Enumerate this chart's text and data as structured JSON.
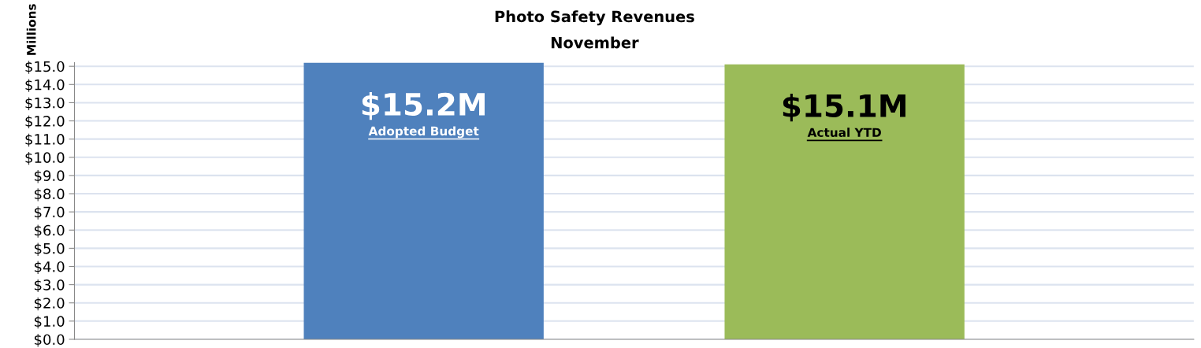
{
  "chart_data": {
    "type": "bar",
    "title": "Photo Safety Revenues",
    "subtitle": "November",
    "ylabel": "Millions",
    "categories": [
      "Adopted Budget",
      "Actual YTD"
    ],
    "values": [
      15.2,
      15.1
    ],
    "colors": [
      "#4f81bd",
      "#9bbb59"
    ],
    "value_labels": [
      "$15.2M",
      "$15.1M"
    ],
    "ylim": [
      0,
      15.2
    ],
    "yticks": [
      {
        "value": 0,
        "label": "$0.0"
      },
      {
        "value": 1,
        "label": "$1.0"
      },
      {
        "value": 2,
        "label": "$2.0"
      },
      {
        "value": 3,
        "label": "$3.0"
      },
      {
        "value": 4,
        "label": "$4.0"
      },
      {
        "value": 5,
        "label": "$5.0"
      },
      {
        "value": 6,
        "label": "$6.0"
      },
      {
        "value": 7,
        "label": "$7.0"
      },
      {
        "value": 8,
        "label": "$8.0"
      },
      {
        "value": 9,
        "label": "$9.0"
      },
      {
        "value": 10,
        "label": "$10.0"
      },
      {
        "value": 11,
        "label": "$11.0"
      },
      {
        "value": 12,
        "label": "$12.0"
      },
      {
        "value": 13,
        "label": "$13.0"
      },
      {
        "value": 14,
        "label": "$14.0"
      },
      {
        "value": 15,
        "label": "$15.0"
      }
    ],
    "grid": "y",
    "tick_labels": "y"
  }
}
